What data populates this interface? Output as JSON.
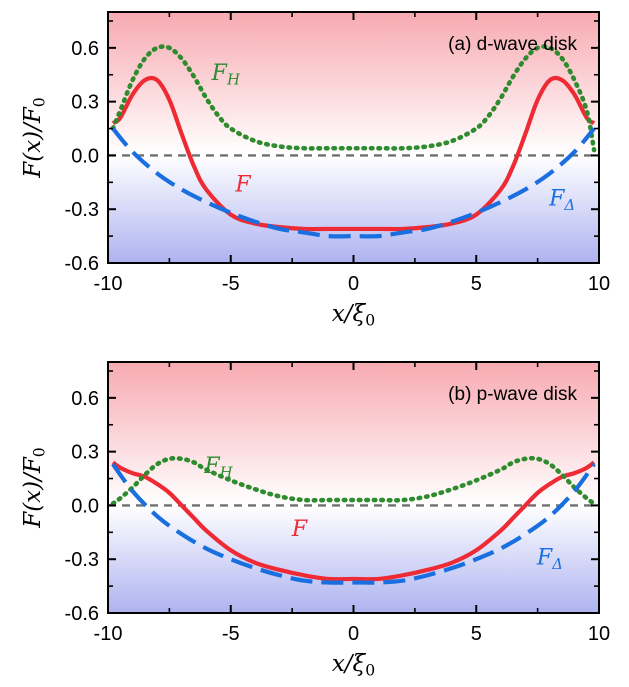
{
  "chart_data": [
    {
      "type": "line",
      "title": "(a) d-wave disk",
      "xlabel": "x/ξ0",
      "ylabel": "F(x)/F0",
      "xlim": [
        -10,
        10
      ],
      "ylim": [
        -0.6,
        0.8
      ],
      "xticks": [
        -10,
        -5,
        0,
        5,
        10
      ],
      "xtick_labels": [
        "-10",
        "-5",
        "0",
        "5",
        "10"
      ],
      "yticks": [
        -0.6,
        -0.3,
        0.0,
        0.3,
        0.6
      ],
      "ytick_labels": [
        "-0.6",
        "-0.3",
        "0.0",
        "0.3",
        "0.6"
      ],
      "grid": false,
      "reference_line": {
        "y": 0.0,
        "style": "dashed",
        "color": "#707070"
      },
      "background_gradient": {
        "top": "#f7aab1",
        "zero": "#ffffff",
        "bottom": "#aeb3f0"
      },
      "series": [
        {
          "name": "F",
          "color": "#ee2b34",
          "style": "solid",
          "label_pos": [
            -4.5,
            -0.2
          ],
          "x": [
            -9.8,
            -9.5,
            -9.0,
            -8.5,
            -8.0,
            -7.5,
            -7.0,
            -6.5,
            -6.0,
            -5.0,
            -4.0,
            -3.0,
            -2.0,
            -1.0,
            0.0,
            1.0,
            2.0,
            3.0,
            4.0,
            5.0,
            6.0,
            6.5,
            7.0,
            7.5,
            8.0,
            8.5,
            9.0,
            9.5,
            9.8
          ],
          "y": [
            0.18,
            0.21,
            0.34,
            0.42,
            0.42,
            0.31,
            0.12,
            -0.06,
            -0.19,
            -0.33,
            -0.38,
            -0.4,
            -0.41,
            -0.41,
            -0.41,
            -0.41,
            -0.41,
            -0.4,
            -0.38,
            -0.33,
            -0.19,
            -0.06,
            0.12,
            0.31,
            0.42,
            0.42,
            0.34,
            0.21,
            0.18
          ]
        },
        {
          "name": "F_H",
          "color": "#2e8b2e",
          "style": "dotted",
          "label_pos": [
            -5.2,
            0.42
          ],
          "x": [
            -9.8,
            -9.5,
            -9.0,
            -8.5,
            -8.0,
            -7.5,
            -7.0,
            -6.5,
            -6.0,
            -5.5,
            -5.0,
            -4.0,
            -3.0,
            -2.0,
            -1.0,
            0.0,
            1.0,
            2.0,
            3.0,
            4.0,
            5.0,
            5.5,
            6.0,
            6.5,
            7.0,
            7.5,
            8.0,
            8.5,
            9.0,
            9.5,
            9.8
          ],
          "y": [
            0.15,
            0.25,
            0.42,
            0.54,
            0.6,
            0.6,
            0.54,
            0.44,
            0.32,
            0.22,
            0.15,
            0.08,
            0.05,
            0.04,
            0.04,
            0.04,
            0.04,
            0.04,
            0.05,
            0.08,
            0.15,
            0.22,
            0.32,
            0.44,
            0.54,
            0.6,
            0.6,
            0.54,
            0.42,
            0.25,
            0.03
          ]
        },
        {
          "name": "F_Δ",
          "color": "#1a6fe0",
          "style": "dashed",
          "label_pos": [
            8.5,
            -0.28
          ],
          "x": [
            -9.8,
            -9.0,
            -8.0,
            -7.0,
            -6.0,
            -5.0,
            -4.0,
            -3.0,
            -2.0,
            -1.0,
            0.0,
            1.0,
            2.0,
            3.0,
            4.0,
            5.0,
            6.0,
            7.0,
            8.0,
            9.0,
            9.8
          ],
          "y": [
            0.15,
            0.02,
            -0.1,
            -0.19,
            -0.26,
            -0.32,
            -0.37,
            -0.41,
            -0.43,
            -0.45,
            -0.45,
            -0.45,
            -0.43,
            -0.41,
            -0.37,
            -0.32,
            -0.26,
            -0.19,
            -0.1,
            0.02,
            0.15
          ]
        }
      ]
    },
    {
      "type": "line",
      "title": "(b) p-wave disk",
      "xlabel": "x/ξ0",
      "ylabel": "F(x)/F0",
      "xlim": [
        -10,
        10
      ],
      "ylim": [
        -0.6,
        0.8
      ],
      "xticks": [
        -10,
        -5,
        0,
        5,
        10
      ],
      "xtick_labels": [
        "-10",
        "-5",
        "0",
        "5",
        "10"
      ],
      "yticks": [
        -0.6,
        -0.3,
        0.0,
        0.3,
        0.6
      ],
      "ytick_labels": [
        "-0.6",
        "-0.3",
        "0.0",
        "0.3",
        "0.6"
      ],
      "grid": false,
      "reference_line": {
        "y": 0.0,
        "style": "dashed",
        "color": "#707070"
      },
      "background_gradient": {
        "top": "#f7aab1",
        "zero": "#ffffff",
        "bottom": "#aeb3f0"
      },
      "series": [
        {
          "name": "F",
          "color": "#ee2b34",
          "style": "solid",
          "label_pos": [
            -2.2,
            -0.17
          ],
          "x": [
            -9.8,
            -9.5,
            -9.0,
            -8.5,
            -8.0,
            -7.5,
            -7.0,
            -6.5,
            -6.0,
            -5.0,
            -4.0,
            -3.0,
            -2.0,
            -1.0,
            0.0,
            1.0,
            2.0,
            3.0,
            4.0,
            5.0,
            6.0,
            6.5,
            7.0,
            7.5,
            8.0,
            8.5,
            9.0,
            9.5,
            9.8
          ],
          "y": [
            0.24,
            0.21,
            0.18,
            0.16,
            0.12,
            0.07,
            0.0,
            -0.07,
            -0.14,
            -0.25,
            -0.32,
            -0.36,
            -0.39,
            -0.41,
            -0.41,
            -0.41,
            -0.39,
            -0.36,
            -0.32,
            -0.25,
            -0.14,
            -0.07,
            0.0,
            0.07,
            0.12,
            0.16,
            0.18,
            0.21,
            0.24
          ]
        },
        {
          "name": "F_H",
          "color": "#2e8b2e",
          "style": "dotted",
          "label_pos": [
            -5.5,
            0.18
          ],
          "x": [
            -9.8,
            -9.5,
            -9.0,
            -8.5,
            -8.0,
            -7.5,
            -7.0,
            -6.5,
            -6.0,
            -5.0,
            -4.0,
            -3.0,
            -2.0,
            -1.0,
            0.0,
            1.0,
            2.0,
            3.0,
            4.0,
            5.0,
            6.0,
            6.5,
            7.0,
            7.5,
            8.0,
            8.5,
            9.0,
            9.5,
            9.8
          ],
          "y": [
            0.01,
            0.04,
            0.1,
            0.17,
            0.23,
            0.26,
            0.26,
            0.24,
            0.2,
            0.14,
            0.09,
            0.05,
            0.03,
            0.03,
            0.03,
            0.03,
            0.03,
            0.05,
            0.09,
            0.14,
            0.2,
            0.24,
            0.26,
            0.26,
            0.23,
            0.17,
            0.1,
            0.04,
            0.01
          ]
        },
        {
          "name": "F_Δ",
          "color": "#1a6fe0",
          "style": "dashed",
          "label_pos": [
            8.0,
            -0.33
          ],
          "x": [
            -9.8,
            -9.0,
            -8.0,
            -7.0,
            -6.0,
            -5.0,
            -4.0,
            -3.0,
            -2.0,
            -1.0,
            0.0,
            1.0,
            2.0,
            3.0,
            4.0,
            5.0,
            6.0,
            7.0,
            8.0,
            9.0,
            9.8
          ],
          "y": [
            0.23,
            0.08,
            -0.06,
            -0.16,
            -0.24,
            -0.3,
            -0.35,
            -0.39,
            -0.42,
            -0.43,
            -0.43,
            -0.43,
            -0.42,
            -0.39,
            -0.35,
            -0.3,
            -0.24,
            -0.16,
            -0.06,
            0.08,
            0.23
          ]
        }
      ]
    }
  ]
}
